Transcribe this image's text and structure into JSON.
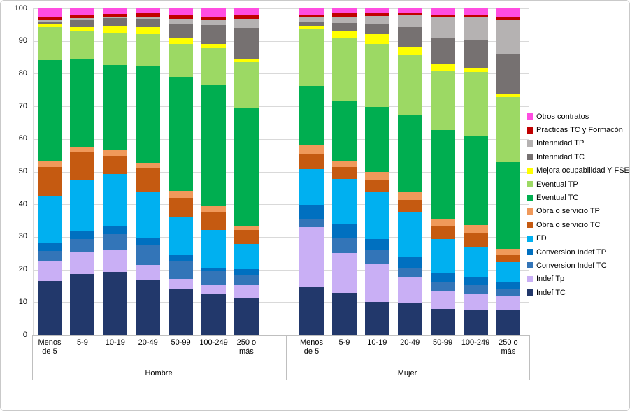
{
  "chart_data": {
    "type": "bar",
    "stacked": true,
    "percent_stacked": true,
    "title": "",
    "xlabel": "",
    "ylabel": "",
    "ylim": [
      0,
      100
    ],
    "yticks": [
      0,
      10,
      20,
      30,
      40,
      50,
      60,
      70,
      80,
      90,
      100
    ],
    "grid": true,
    "legend_position": "right",
    "series_bottom_to_top": [
      {
        "name": "Indef TC",
        "color": "#22386B"
      },
      {
        "name": "Indef Tp",
        "color": "#C9AFF5"
      },
      {
        "name": "Conversion Indef TC",
        "color": "#3375B8"
      },
      {
        "name": "Conversion Indef TP",
        "color": "#0070C0"
      },
      {
        "name": "FD",
        "color": "#00B0F0"
      },
      {
        "name": "Obra o servicio TC",
        "color": "#C55A11"
      },
      {
        "name": "Obra o servicio TP",
        "color": "#F0995A"
      },
      {
        "name": "Eventual TC",
        "color": "#00AE50"
      },
      {
        "name": "Eventual TP",
        "color": "#9CD964"
      },
      {
        "name": "Mejora ocupabilidad Y FSE",
        "color": "#FFFF00"
      },
      {
        "name": "Interinidad TC",
        "color": "#767171"
      },
      {
        "name": "Interinidad TP",
        "color": "#B5B2B2"
      },
      {
        "name": "Practicas TC y Formacón",
        "color": "#C00000"
      },
      {
        "name": "Otros contratos",
        "color": "#FF4DE1"
      }
    ],
    "legend_top_to_bottom": [
      "Otros contratos",
      "Practicas TC y Formacón",
      "Interinidad TP",
      "Interinidad TC",
      "Mejora ocupabilidad Y FSE",
      "Eventual TP",
      "Eventual TC",
      "Obra o servicio TP",
      "Obra o servicio TC",
      "FD",
      "Conversion Indef TP",
      "Conversion Indef TC",
      "Indef Tp",
      "Indef TC"
    ],
    "groups": [
      {
        "label": "Hombre",
        "categories": [
          "Menos\nde 5",
          "5-9",
          "10-19",
          "20-49",
          "50-99",
          "100-249",
          "250 o\nmás"
        ],
        "values_bottom_to_top": [
          [
            16.4,
            6.2,
            3.2,
            2.4,
            14.4,
            8.9,
            1.8,
            30.8,
            10.2,
            0.7,
            0.8,
            0.7,
            0.9,
            2.6
          ],
          [
            18.7,
            6.5,
            4.2,
            2.6,
            15.4,
            8.6,
            1.4,
            26.9,
            8.7,
            1.4,
            2.2,
            0.5,
            0.8,
            2.1
          ],
          [
            19.4,
            6.7,
            4.9,
            2.3,
            16.1,
            5.5,
            1.9,
            26.0,
            9.8,
            2.2,
            2.3,
            0.6,
            0.8,
            1.7
          ],
          [
            16.9,
            4.5,
            6.2,
            1.9,
            14.5,
            7.0,
            1.8,
            29.5,
            10.1,
            1.9,
            2.6,
            0.7,
            1.1,
            1.4
          ],
          [
            14.0,
            3.2,
            5.6,
            1.7,
            11.6,
            5.9,
            2.2,
            35.0,
            9.9,
            1.9,
            4.2,
            1.7,
            1.0,
            2.2
          ],
          [
            12.6,
            2.6,
            4.3,
            1.0,
            11.7,
            5.7,
            1.8,
            37.1,
            11.5,
            1.0,
            5.8,
            1.7,
            1.0,
            2.5
          ],
          [
            11.4,
            3.7,
            3.0,
            2.0,
            7.8,
            4.1,
            1.2,
            36.4,
            13.9,
            1.1,
            9.4,
            2.6,
            1.2,
            2.1
          ]
        ]
      },
      {
        "label": "Mujer",
        "categories": [
          "Menos\nde 5",
          "5-9",
          "10-19",
          "20-49",
          "50-99",
          "100-249",
          "250 o\nmás"
        ],
        "values_bottom_to_top": [
          [
            14.9,
            18.1,
            2.5,
            4.5,
            10.9,
            4.6,
            2.6,
            18.2,
            17.6,
            0.9,
            1.4,
            1.2,
            0.7,
            2.1
          ],
          [
            12.8,
            12.2,
            4.5,
            4.5,
            13.8,
            3.7,
            1.8,
            18.5,
            19.4,
            2.1,
            2.3,
            2.0,
            0.9,
            1.6
          ],
          [
            10.1,
            11.8,
            3.9,
            3.6,
            14.5,
            3.5,
            2.4,
            20.0,
            19.2,
            3.0,
            3.0,
            2.6,
            0.9,
            1.4
          ],
          [
            9.7,
            8.0,
            2.8,
            3.3,
            13.6,
            3.9,
            2.5,
            23.3,
            18.5,
            2.6,
            6.0,
            3.5,
            1.0,
            1.2
          ],
          [
            7.9,
            5.3,
            3.1,
            2.8,
            10.2,
            4.0,
            2.2,
            27.1,
            18.3,
            2.2,
            7.8,
            6.2,
            0.8,
            2.0
          ],
          [
            7.5,
            5.1,
            2.6,
            2.6,
            9.0,
            4.5,
            2.4,
            27.5,
            19.6,
            1.3,
            8.5,
            6.9,
            0.8,
            2.0
          ],
          [
            7.5,
            4.4,
            2.0,
            2.2,
            6.3,
            2.0,
            1.9,
            26.6,
            20.0,
            1.2,
            12.2,
            10.2,
            1.0,
            2.7
          ]
        ]
      }
    ],
    "colors": {
      "grid": "#D9D9D9",
      "axis": "#BFBFBF",
      "text": "#000000",
      "background": "#FFFFFF"
    }
  }
}
